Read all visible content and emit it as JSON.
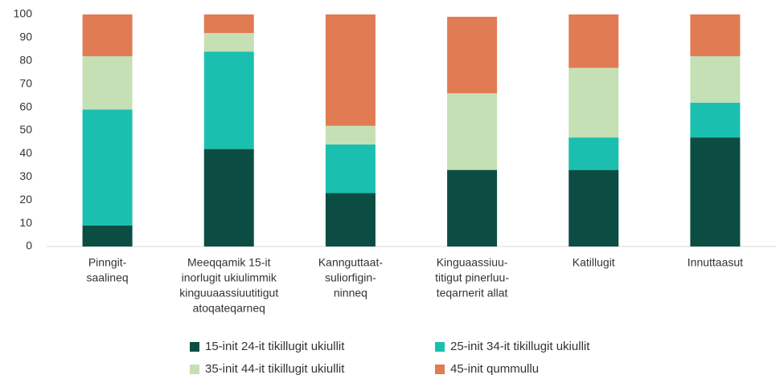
{
  "chart_data": {
    "type": "stacked_bar",
    "categories": [
      [
        "Pinngit-",
        "saalineq"
      ],
      [
        "Meeqqamik 15-it",
        "inorlugit ukiulimmik",
        "kinguuaassiuutitigut",
        "atoqateqarneq"
      ],
      [
        "Kannguttaat-",
        "suliorfigin-",
        "ninneq"
      ],
      [
        "Kinguaassiuu-",
        "titigut pinerluu-",
        "teqarnerit allat"
      ],
      [
        "Katillugit"
      ],
      [
        "Innuttaasut"
      ]
    ],
    "series": [
      {
        "name": "15-init 24-it tikillugit ukiullit",
        "color": "#0b4d42",
        "values": [
          9,
          42,
          23,
          33,
          33,
          47
        ]
      },
      {
        "name": "25-init 34-it tikillugit ukiullit",
        "color": "#1bbfb0",
        "values": [
          50,
          42,
          21,
          0,
          14,
          15
        ]
      },
      {
        "name": "35-init 44-it tikillugit ukiullit",
        "color": "#c5e0b4",
        "values": [
          23,
          8,
          8,
          33,
          30,
          20
        ]
      },
      {
        "name": "45-init qummullu",
        "color": "#e07b54",
        "values": [
          18,
          8,
          48,
          33,
          23,
          18
        ]
      }
    ],
    "ylim": [
      0,
      100
    ],
    "yticks": [
      0,
      10,
      20,
      30,
      40,
      50,
      60,
      70,
      80,
      90,
      100
    ],
    "grid": false
  }
}
